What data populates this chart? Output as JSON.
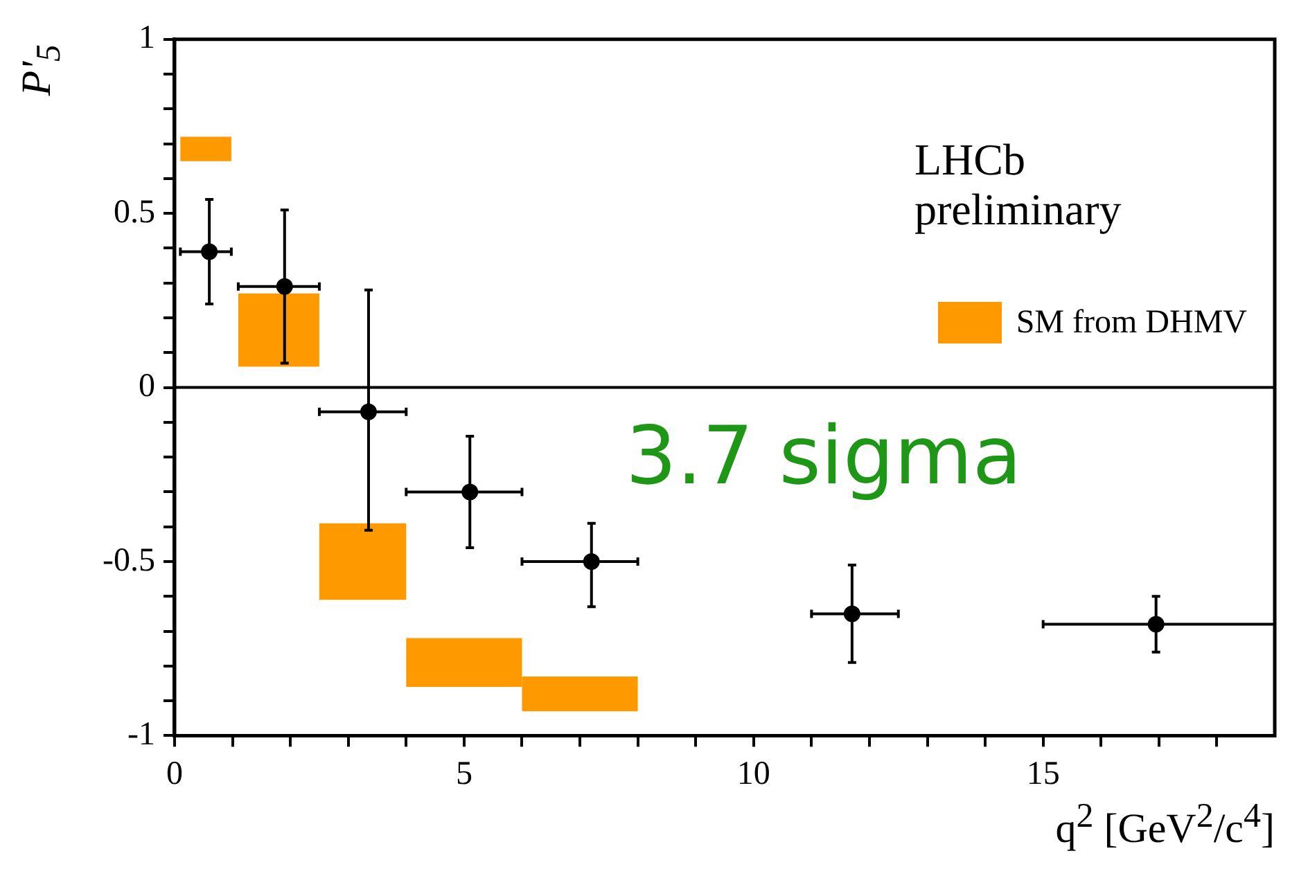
{
  "chart_data": {
    "type": "scatter",
    "xlabel": "q$^{2}$ [GeV$^{2}$/c$^{4}$]",
    "ylabel": "P'$_{5}$",
    "annotations": [
      "LHCb preliminary",
      "3.7 sigma"
    ],
    "legend": "top right",
    "marker": "circle",
    "xlim": [
      0,
      19
    ],
    "ylim": [
      -1,
      1
    ],
    "xticks": [
      0,
      {
        "value": 1,
        "label": null
      },
      {
        "value": 2,
        "label": null
      },
      {
        "value": 3,
        "label": null
      },
      {
        "value": 4,
        "label": null
      },
      5,
      {
        "value": 6,
        "label": null
      },
      {
        "value": 7,
        "label": null
      },
      {
        "value": 8,
        "label": null
      },
      {
        "value": 9,
        "label": null
      },
      10,
      {
        "value": 11,
        "label": null
      },
      {
        "value": 12,
        "label": null
      },
      {
        "value": 13,
        "label": null
      },
      {
        "value": 14,
        "label": null
      },
      15,
      {
        "value": 16,
        "label": null
      },
      {
        "value": 17,
        "label": null
      },
      {
        "value": 18,
        "label": null
      }
    ],
    "yticks": [
      -1,
      {
        "value": -0.9,
        "label": null
      },
      {
        "value": -0.8,
        "label": null
      },
      {
        "value": -0.7,
        "label": null
      },
      {
        "value": -0.6,
        "label": null
      },
      -0.5,
      {
        "value": -0.4,
        "label": null
      },
      {
        "value": -0.3,
        "label": null
      },
      {
        "value": -0.2,
        "label": null
      },
      {
        "value": -0.1,
        "label": null
      },
      0,
      {
        "value": 0.1,
        "label": null
      },
      {
        "value": 0.2,
        "label": null
      },
      {
        "value": 0.3,
        "label": null
      },
      {
        "value": 0.4,
        "label": null
      },
      0.5,
      {
        "value": 0.6,
        "label": null
      },
      {
        "value": 0.7,
        "label": null
      },
      {
        "value": 0.8,
        "label": null
      },
      {
        "value": 0.9,
        "label": null
      },
      1
    ],
    "ref_lines": [
      {
        "axis": "y",
        "value": 0,
        "color": "#000000"
      }
    ],
    "series": [
      {
        "name": "SM from DHMV",
        "type": "bar",
        "color": "#ff9900",
        "x": [
          0.55,
          1.8,
          3.25,
          5,
          7
        ],
        "base": [
          0.65,
          0.06,
          -0.61,
          -0.86,
          -0.93
        ],
        "values": [
          0.07,
          0.21,
          0.22,
          0.14,
          0.1
        ]
      },
      {
        "type": "scatter",
        "color": "#000000",
        "x": [
          0.6,
          1.9,
          3.35,
          5.1,
          7.2,
          11.7,
          16.95
        ],
        "values": [
          0.39,
          0.29,
          -0.07,
          -0.3,
          -0.5,
          -0.65,
          -0.68
        ],
        "errors": [
          [
            0.24,
            0.54
          ],
          [
            0.07,
            0.51
          ],
          [
            -0.41,
            0.28
          ],
          [
            -0.46,
            -0.14
          ],
          [
            -0.63,
            -0.39
          ],
          [
            -0.79,
            -0.51
          ],
          [
            -0.76,
            -0.6
          ]
        ],
        "xerrors": [
          [
            0.1,
            0.98
          ],
          [
            1.1,
            2.5
          ],
          [
            2.5,
            4
          ],
          [
            4,
            6
          ],
          [
            6,
            8
          ],
          [
            11,
            12.5
          ],
          [
            15,
            19
          ]
        ]
      }
    ]
  }
}
